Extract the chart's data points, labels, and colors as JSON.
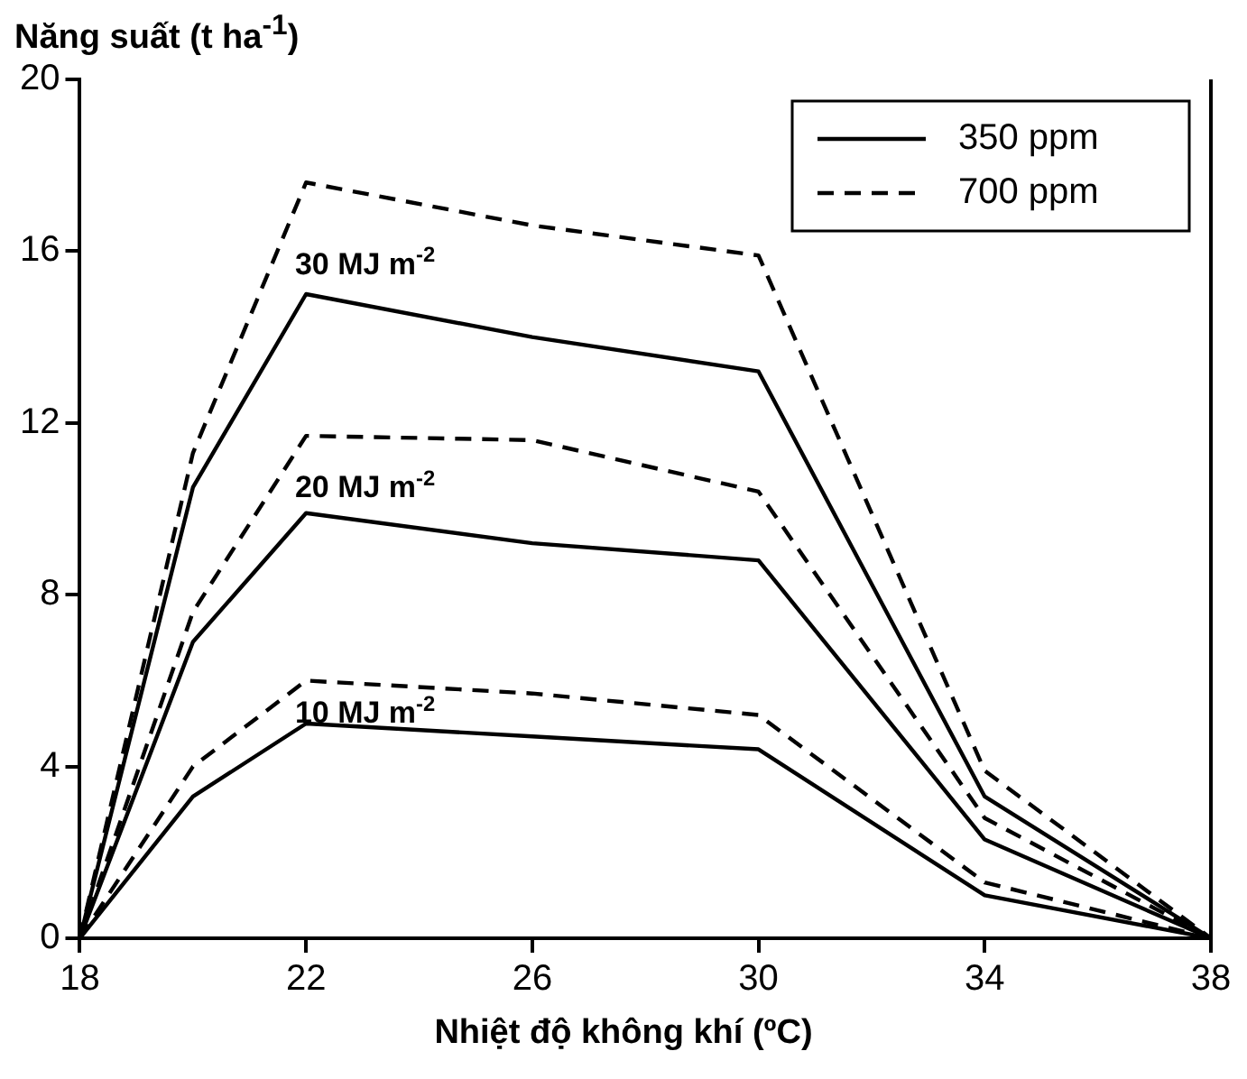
{
  "chart_data": {
    "type": "line",
    "xlabel": "Nhiệt độ không khí (ºC)",
    "ylabel": "Năng suất (t ha$^{-1}$)",
    "x": [
      18,
      20,
      22,
      26,
      30,
      34,
      38
    ],
    "series": [
      {
        "name": "350 ppm",
        "color": "#000000",
        "line_style": "solid",
        "values": [
          0,
          10.5,
          15,
          14,
          13.2,
          3.3,
          0
        ]
      },
      {
        "name": "700 ppm",
        "color": "#000000",
        "line_style": "dashed",
        "values": [
          0,
          11.3,
          17.6,
          16.6,
          15.9,
          3.9,
          0
        ]
      },
      {
        "color": "#000000",
        "line_style": "solid",
        "values": [
          0,
          6.9,
          9.9,
          9.2,
          8.8,
          2.3,
          0
        ]
      },
      {
        "color": "#000000",
        "line_style": "dashed",
        "values": [
          0,
          7.6,
          11.7,
          11.6,
          10.4,
          2.8,
          0
        ]
      },
      {
        "color": "#000000",
        "line_style": "solid",
        "values": [
          0,
          3.3,
          5.0,
          4.7,
          4.4,
          1.0,
          0
        ]
      },
      {
        "color": "#000000",
        "line_style": "dashed",
        "values": [
          0,
          4.0,
          6.0,
          5.7,
          5.2,
          1.3,
          0
        ]
      }
    ],
    "annotations": [
      "30 MJ m$^{-2}$",
      "20 MJ m$^{-2}$",
      "10 MJ m$^{-2}$"
    ],
    "xlim": [
      18,
      38
    ],
    "xticks": [
      18,
      22,
      26,
      30,
      34,
      38
    ],
    "ylim": [
      0,
      20
    ],
    "yticks": [
      0,
      4,
      8,
      12,
      16,
      20
    ],
    "grid": false,
    "legend": "top right",
    "marker": "none"
  }
}
